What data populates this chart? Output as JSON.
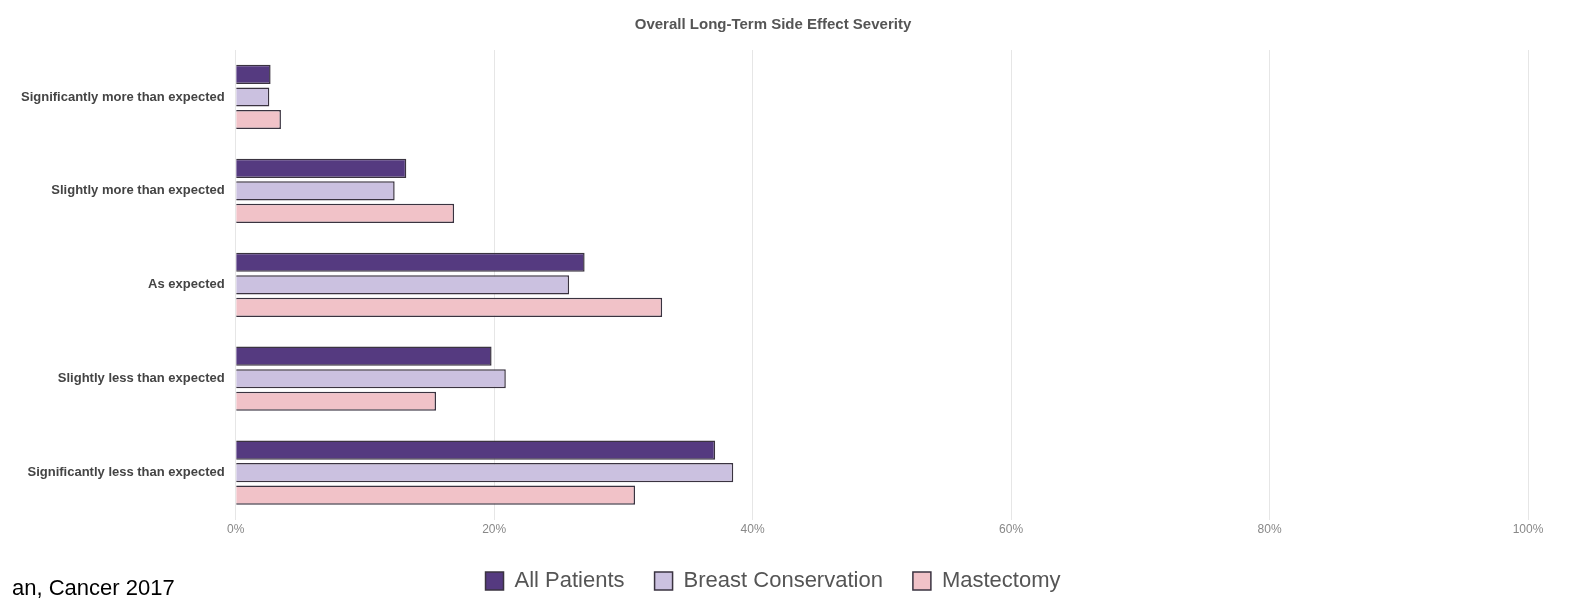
{
  "chart_data": {
    "type": "bar",
    "orientation": "horizontal",
    "title": "Overall Long-Term Side Effect Severity",
    "categories": [
      "Significantly more than expected",
      "Slightly more than expected",
      "As expected",
      "Slightly less than expected",
      "Significantly less than expected"
    ],
    "series": [
      {
        "name": "All Patients",
        "color": "#553a80",
        "values": [
          2.7,
          13.2,
          27.0,
          19.8,
          37.1
        ]
      },
      {
        "name": "Breast Conservation",
        "color": "#cbc1e0",
        "values": [
          2.6,
          12.3,
          25.8,
          20.9,
          38.5
        ]
      },
      {
        "name": "Mastectomy",
        "color": "#f1c2c8",
        "values": [
          3.5,
          16.9,
          33.0,
          15.5,
          30.9
        ]
      }
    ],
    "xlim": [
      0,
      100
    ],
    "xticks": [
      {
        "value": 0,
        "label": "0%"
      },
      {
        "value": 20,
        "label": "20%"
      },
      {
        "value": 40,
        "label": "40%"
      },
      {
        "value": 60,
        "label": "60%"
      },
      {
        "value": 80,
        "label": "80%"
      },
      {
        "value": 100,
        "label": "100%"
      }
    ],
    "grid": "x",
    "legend": "bottom",
    "annotations": [
      "an, Cancer 2017"
    ]
  }
}
